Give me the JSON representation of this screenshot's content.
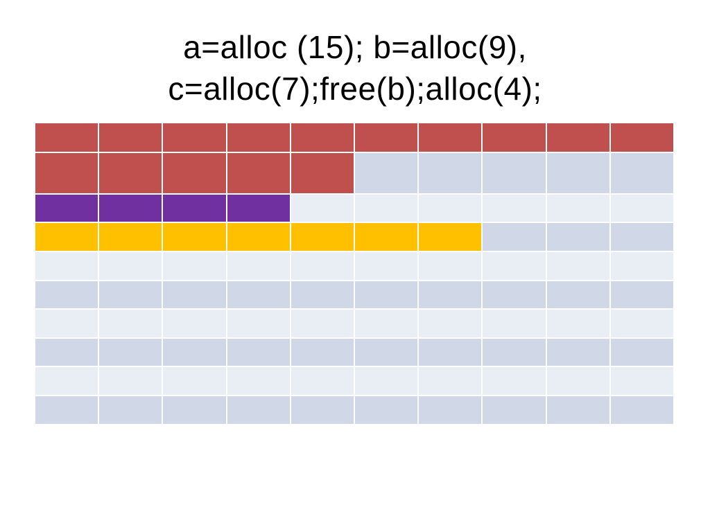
{
  "title": {
    "line1": "a=alloc (15); b=alloc(9),",
    "line2": "c=alloc(7);free(b);alloc(4);"
  },
  "colors": {
    "a": "#C0504D",
    "new": "#7030A0",
    "c": "#FFC000",
    "free_dark": "#D0D8E8",
    "free_light": "#E9EDF4"
  },
  "grid": {
    "columns": 10,
    "rows": [
      [
        "a",
        "a",
        "a",
        "a",
        "a",
        "a",
        "a",
        "a",
        "a",
        "a"
      ],
      [
        "a",
        "a",
        "a",
        "a",
        "a",
        "free_dark",
        "free_dark",
        "free_dark",
        "free_dark",
        "free_dark"
      ],
      [
        "new",
        "new",
        "new",
        "new",
        "free_light",
        "free_light",
        "free_light",
        "free_light",
        "free_light",
        "free_light"
      ],
      [
        "c",
        "c",
        "c",
        "c",
        "c",
        "c",
        "c",
        "free_dark",
        "free_dark",
        "free_dark"
      ],
      [
        "free_light",
        "free_light",
        "free_light",
        "free_light",
        "free_light",
        "free_light",
        "free_light",
        "free_light",
        "free_light",
        "free_light"
      ],
      [
        "free_dark",
        "free_dark",
        "free_dark",
        "free_dark",
        "free_dark",
        "free_dark",
        "free_dark",
        "free_dark",
        "free_dark",
        "free_dark"
      ],
      [
        "free_light",
        "free_light",
        "free_light",
        "free_light",
        "free_light",
        "free_light",
        "free_light",
        "free_light",
        "free_light",
        "free_light"
      ],
      [
        "free_dark",
        "free_dark",
        "free_dark",
        "free_dark",
        "free_dark",
        "free_dark",
        "free_dark",
        "free_dark",
        "free_dark",
        "free_dark"
      ],
      [
        "free_light",
        "free_light",
        "free_light",
        "free_light",
        "free_light",
        "free_light",
        "free_light",
        "free_light",
        "free_light",
        "free_light"
      ],
      [
        "free_dark",
        "free_dark",
        "free_dark",
        "free_dark",
        "free_dark",
        "free_dark",
        "free_dark",
        "free_dark",
        "free_dark",
        "free_dark"
      ]
    ]
  }
}
